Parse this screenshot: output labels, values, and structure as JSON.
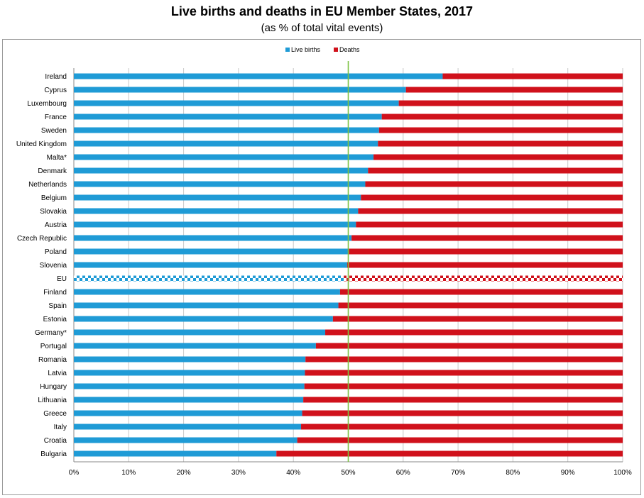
{
  "chart_data": {
    "type": "bar",
    "orientation": "horizontal",
    "stacked": true,
    "title": "Live births and deaths in EU Member States, 2017",
    "subtitle": "(as % of total vital events)",
    "categories": [
      "Ireland",
      "Cyprus",
      "Luxembourg",
      "France",
      "Sweden",
      "United Kingdom",
      "Malta*",
      "Denmark",
      "Netherlands",
      "Belgium",
      "Slovakia",
      "Austria",
      "Czech Republic",
      "Poland",
      "Slovenia",
      "EU",
      "Finland",
      "Spain",
      "Estonia",
      "Germany*",
      "Portugal",
      "Romania",
      "Latvia",
      "Hungary",
      "Lithuania",
      "Greece",
      "Italy",
      "Croatia",
      "Bulgaria"
    ],
    "series": [
      {
        "name": "Live births",
        "color": "#1f9bd6",
        "values": [
          67.2,
          60.5,
          59.2,
          56.1,
          55.6,
          55.4,
          54.6,
          53.6,
          53.1,
          52.3,
          51.8,
          51.4,
          50.6,
          50.1,
          49.8,
          49.2,
          48.5,
          48.2,
          47.2,
          45.8,
          44.1,
          42.2,
          42.1,
          42.0,
          41.8,
          41.6,
          41.4,
          40.7,
          36.9
        ]
      },
      {
        "name": "Deaths",
        "color": "#d0111b",
        "values": [
          32.8,
          39.5,
          40.8,
          43.9,
          44.4,
          44.6,
          45.4,
          46.4,
          46.9,
          47.7,
          48.2,
          48.6,
          49.4,
          49.9,
          50.2,
          50.8,
          51.5,
          51.8,
          52.8,
          54.2,
          55.9,
          57.8,
          57.9,
          58.0,
          58.2,
          58.4,
          58.6,
          59.3,
          63.1
        ]
      }
    ],
    "highlight_category": "EU",
    "reference_line": 50,
    "reference_line_color": "#7cc242",
    "xlim": [
      0,
      100
    ],
    "x_ticks": [
      "0%",
      "10%",
      "20%",
      "30%",
      "40%",
      "50%",
      "60%",
      "70%",
      "80%",
      "90%",
      "100%"
    ],
    "grid": true,
    "legend_position": "top"
  }
}
